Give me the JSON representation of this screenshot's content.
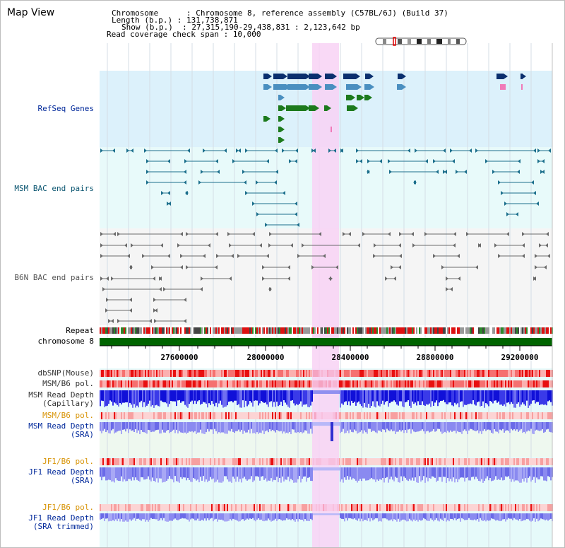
{
  "title": "Map View",
  "info": {
    "line1": "Chromosome      : Chromosome 8, reference assembly (C57BL/6J) (Build 37)",
    "line2": "Length (b.p.) : 131,738,871",
    "line3": "Show (b.p.)  : 27,315,190-29,438,831 : 2,123,642 bp",
    "line4": "Read coverage check span : 10,000"
  },
  "tracks": {
    "refseq": "RefSeq Genes",
    "msm_bac": "MSM BAC end pairs",
    "b6n_bac": "B6N BAC end pairs",
    "repeat": "Repeat",
    "chrom": "chromosome 8",
    "dbsnp": "dbSNP(Mouse)",
    "msm_b6_pol_1": "MSM/B6 pol.",
    "msm_depth_cap": "MSM Read Depth\n(Capillary)",
    "msm_b6_pol_2": "MSM/B6 pol.",
    "msm_depth_sra": "MSM Read Depth\n(SRA)",
    "jf1_b6_pol_1": "JF1/B6 pol.",
    "jf1_depth_sra": "JF1 Read Depth\n(SRA)",
    "jf1_b6_pol_2": "JF1/B6 pol.",
    "jf1_depth_trim": "JF1 Read Depth\n(SRA trimmed)"
  },
  "axis": {
    "ticks": [
      "27600000",
      "28000000",
      "28400000",
      "28800000",
      "29200000"
    ],
    "range": [
      27315190,
      29438831
    ]
  },
  "colors": {
    "gene_dark": "#0a2f6e",
    "gene_light": "#4a8fc0",
    "gene_green": "#1c7a1c",
    "highlight": "#f8d2f5",
    "bac_blue": "#1c6f8c",
    "bac_gray": "#6a6a6a",
    "chrom_green": "#006400",
    "blue_label": "#00289a",
    "orange_label": "#d8950a",
    "teal_label": "#0a5570"
  },
  "icons": {
    "ideogram": "chromosome-ideogram-icon"
  }
}
